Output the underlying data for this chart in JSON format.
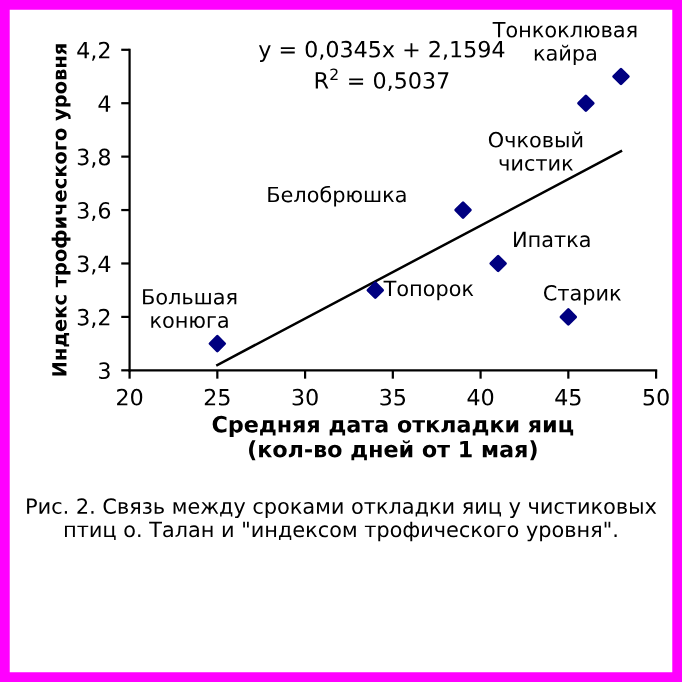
{
  "chart_data": {
    "type": "scatter",
    "xlabel": "Средняя дата откладки яиц\n(кол-во дней от 1 мая)",
    "ylabel": "Индекс трофического уровня",
    "series": [
      {
        "color": "#000080",
        "marker": "diamond",
        "x": [
          25,
          34,
          39,
          41,
          45,
          46,
          48
        ],
        "values": [
          3.1,
          3.3,
          3.6,
          3.4,
          3.2,
          4.0,
          4.1
        ]
      },
      {
        "type": "line",
        "color": "#000000",
        "marker": "none",
        "line_style": "solid",
        "x": [
          25,
          48
        ],
        "values": [
          3.02,
          3.82
        ]
      }
    ],
    "xlim": [
      20,
      50
    ],
    "xticks": [
      20,
      25,
      30,
      35,
      40,
      45,
      50
    ],
    "ylim": [
      3,
      4.2
    ],
    "yticks": [
      3,
      {
        "value": 3.2,
        "label": "3,2"
      },
      {
        "value": 3.4,
        "label": "3,4"
      },
      {
        "value": 3.6,
        "label": "3,6"
      },
      {
        "value": 3.8,
        "label": "3,8"
      },
      4,
      {
        "value": 4.2,
        "label": "4,2"
      }
    ],
    "grid": false,
    "annotations": [
      "y = 0,0345x + 2,1594",
      "R$^{2}$ = 0,5037",
      {
        "text": "Большая\nконюга",
        "x": 25,
        "y": 3.1
      },
      {
        "text": "Топорок",
        "x": 34,
        "y": 3.3
      },
      {
        "text": "Белобрюшка",
        "x": 39,
        "y": 3.6
      },
      {
        "text": "Ипатка",
        "x": 41,
        "y": 3.4
      },
      {
        "text": "Старик",
        "x": 45,
        "y": 3.2
      },
      {
        "text": "Очковый\nчистик",
        "x": 46,
        "y": 4.0
      },
      {
        "text": "Тонкоклювая\nкайра",
        "x": 48,
        "y": 4.1
      },
      "Рис. 2. Связь между сроками откладки яиц у чистиковых птиц о. Талан и \"индексом трофического уровня\"."
    ]
  }
}
